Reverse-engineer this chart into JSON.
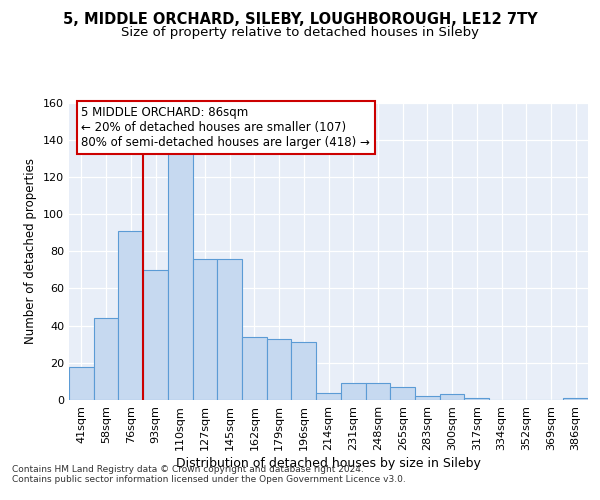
{
  "title": "5, MIDDLE ORCHARD, SILEBY, LOUGHBOROUGH, LE12 7TY",
  "subtitle": "Size of property relative to detached houses in Sileby",
  "xlabel": "Distribution of detached houses by size in Sileby",
  "ylabel": "Number of detached properties",
  "categories": [
    "41sqm",
    "58sqm",
    "76sqm",
    "93sqm",
    "110sqm",
    "127sqm",
    "145sqm",
    "162sqm",
    "179sqm",
    "196sqm",
    "214sqm",
    "231sqm",
    "248sqm",
    "265sqm",
    "283sqm",
    "300sqm",
    "317sqm",
    "334sqm",
    "352sqm",
    "369sqm",
    "386sqm"
  ],
  "values": [
    18,
    44,
    91,
    70,
    133,
    76,
    76,
    34,
    33,
    31,
    4,
    9,
    9,
    7,
    2,
    3,
    1,
    0,
    0,
    0,
    1
  ],
  "bar_color": "#c6d9f0",
  "bar_edge_color": "#5b9bd5",
  "vline_x": 2.5,
  "vline_color": "#cc0000",
  "annotation_text": "5 MIDDLE ORCHARD: 86sqm\n← 20% of detached houses are smaller (107)\n80% of semi-detached houses are larger (418) →",
  "annotation_box_color": "#ffffff",
  "annotation_box_edge_color": "#cc0000",
  "ylim": [
    0,
    160
  ],
  "yticks": [
    0,
    20,
    40,
    60,
    80,
    100,
    120,
    140,
    160
  ],
  "footer_text": "Contains HM Land Registry data © Crown copyright and database right 2024.\nContains public sector information licensed under the Open Government Licence v3.0.",
  "bg_color": "#e8eef8",
  "grid_color": "#ffffff",
  "title_fontsize": 10.5,
  "subtitle_fontsize": 9.5,
  "xlabel_fontsize": 9,
  "ylabel_fontsize": 8.5,
  "tick_fontsize": 8,
  "footer_fontsize": 6.5,
  "ann_fontsize": 8.5
}
